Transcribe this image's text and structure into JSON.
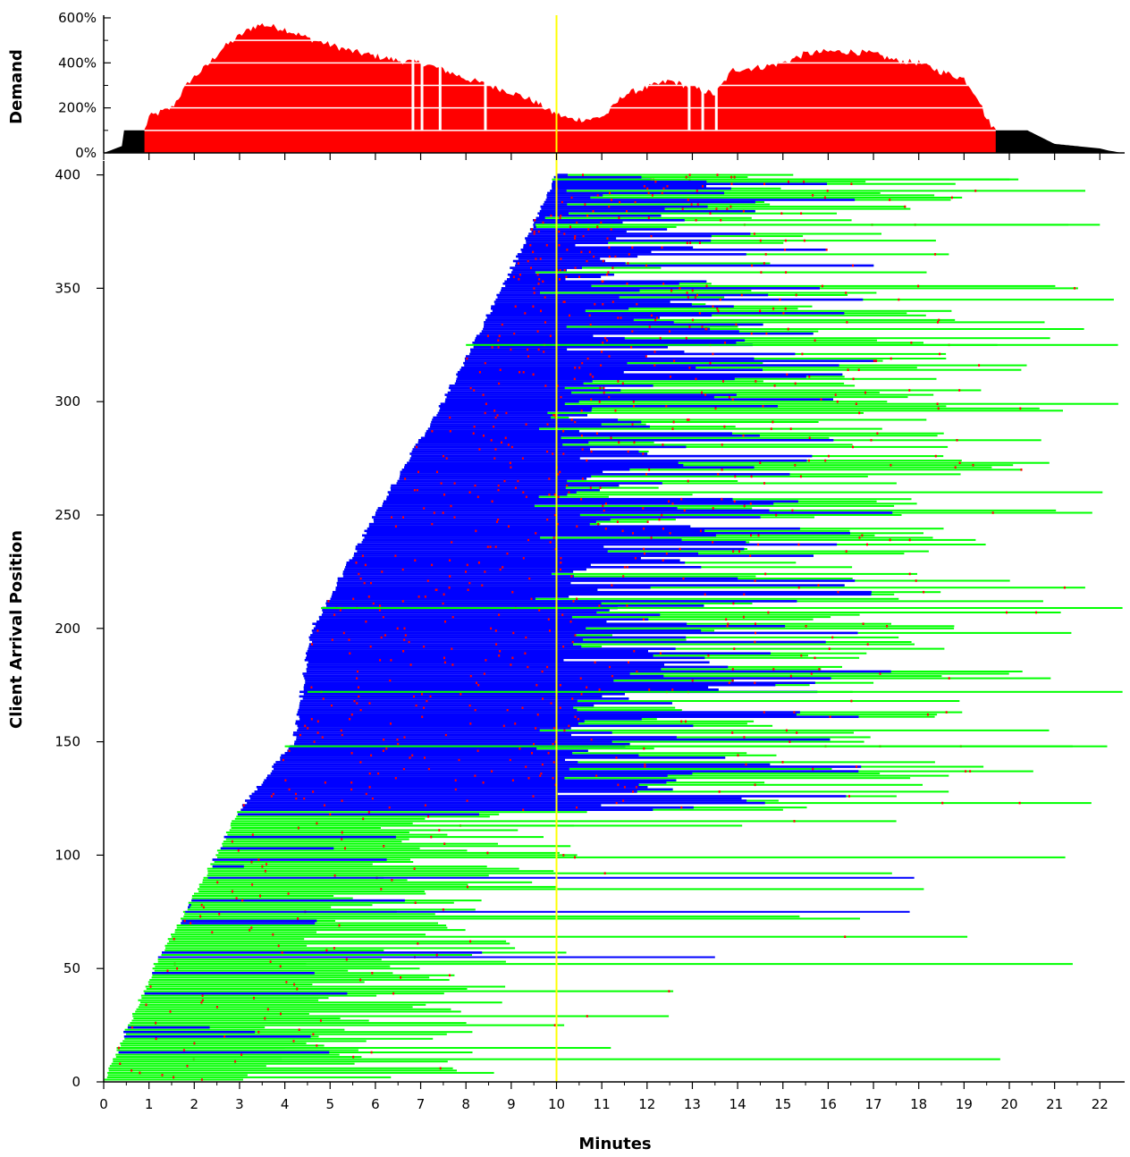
{
  "chart_data": [
    {
      "type": "area",
      "panel": "demand",
      "ylabel": "Demand",
      "ylim_percent": [
        0,
        600
      ],
      "yticks": [
        "0%",
        "200%",
        "400%",
        "600%"
      ],
      "grid_lines_percent": [
        100,
        200,
        300,
        400,
        500
      ],
      "grid": true,
      "series": [
        {
          "color": "#000000",
          "x_minutes": [
            0,
            0.4,
            0.45,
            20.4,
            20.6,
            21,
            21.5,
            22,
            22.2,
            22.5
          ],
          "values_percent": [
            0,
            30,
            100,
            100,
            80,
            40,
            30,
            20,
            10,
            0
          ]
        },
        {
          "color": "#ff0000",
          "x_minutes": [
            0.9,
            1,
            1.5,
            1.9,
            2.3,
            2.6,
            3,
            3.3,
            3.5,
            4,
            4.5,
            5,
            5.5,
            6,
            6.5,
            7,
            7.5,
            8,
            8.5,
            9,
            9.5,
            9.9,
            10.3,
            10.8,
            11.1,
            11.5,
            12,
            12.5,
            13,
            13.5,
            13.9,
            14.5,
            15,
            15.5,
            16,
            16.5,
            17,
            17.5,
            18,
            18.5,
            19,
            19.3,
            19.5,
            19.7
          ],
          "values_percent": [
            100,
            160,
            200,
            320,
            390,
            460,
            520,
            560,
            570,
            550,
            510,
            480,
            450,
            430,
            410,
            400,
            370,
            330,
            300,
            270,
            230,
            180,
            150,
            150,
            170,
            260,
            290,
            320,
            290,
            260,
            370,
            380,
            400,
            440,
            450,
            450,
            440,
            410,
            400,
            360,
            330,
            250,
            150,
            100
          ]
        }
      ],
      "x_mark_minutes": 10,
      "x_mark_color": "#ffff00"
    },
    {
      "type": "range-bars",
      "panel": "clients",
      "xlabel": "Minutes",
      "ylabel": "Client Arrival Position",
      "xlim": [
        0,
        22.5
      ],
      "ylim": [
        0,
        400
      ],
      "xticks": [
        "0",
        "1",
        "2",
        "3",
        "4",
        "5",
        "6",
        "7",
        "8",
        "9",
        "10",
        "11",
        "12",
        "13",
        "14",
        "15",
        "16",
        "17",
        "18",
        "19",
        "20",
        "21",
        "22"
      ],
      "yticks": [
        "0",
        "50",
        "100",
        "150",
        "200",
        "250",
        "300",
        "350",
        "400"
      ],
      "colors": {
        "waiting": "#0000ff",
        "playing": "#00ff00",
        "event": "#ff0000",
        "marker": "#ffff00"
      },
      "x_mark_minutes": 10,
      "arrival_curve": {
        "position": [
          0,
          50,
          100,
          120,
          130,
          150,
          200,
          250,
          300,
          350,
          400
        ],
        "arrival_minute": [
          0,
          1.1,
          2.5,
          3.0,
          3.4,
          4.2,
          4.6,
          6.0,
          7.5,
          8.8,
          10.0
        ]
      },
      "sample_rows": [
        {
          "position": 10,
          "start": 0.2,
          "end": 19.8,
          "state": "playing"
        },
        {
          "position": 15,
          "start": 0.4,
          "end": 11.2,
          "state": "playing"
        },
        {
          "position": 52,
          "start": 1.1,
          "end": 21.4,
          "state": "playing"
        },
        {
          "position": 55,
          "start": 1.2,
          "end": 13.5,
          "state": "waiting"
        },
        {
          "position": 75,
          "start": 1.8,
          "end": 17.8,
          "state": "waiting"
        },
        {
          "position": 90,
          "start": 2.3,
          "end": 17.9,
          "state": "waiting"
        },
        {
          "position": 113,
          "start": 2.8,
          "end": 14.1,
          "state": "playing"
        },
        {
          "position": 148,
          "start": 4.0,
          "end": 21.4,
          "state": "playing"
        },
        {
          "position": 172,
          "start": 4.5,
          "end": 22.5,
          "state": "playing"
        },
        {
          "position": 209,
          "start": 4.8,
          "end": 22.5,
          "state": "playing"
        },
        {
          "position": 325,
          "start": 8.0,
          "end": 22.4,
          "state": "playing"
        },
        {
          "position": 378,
          "start": 9.6,
          "end": 22.0,
          "state": "playing"
        },
        {
          "position": 398,
          "start": 9.9,
          "end": 20.2,
          "state": "playing"
        }
      ]
    }
  ]
}
